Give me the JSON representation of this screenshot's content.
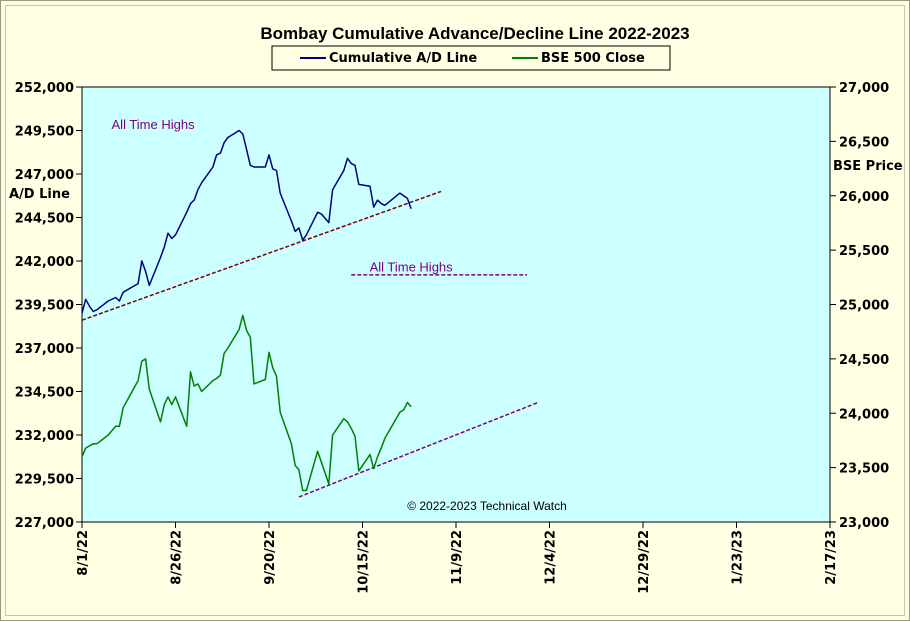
{
  "chart_data": {
    "type": "line",
    "title": "Bombay Cumulative Advance/Decline Line 2022-2023",
    "ylabel_left": [
      "A/D Line"
    ],
    "ylabel_right": "BSE Price",
    "copyright": "© 2022-2023  Technical  Watch",
    "colors": {
      "background": "#ffffe3",
      "plot": "#ccffff",
      "ad": "#000080",
      "bse": "#008000",
      "trend": "#800000",
      "ath": "#800080"
    },
    "x_axis": {
      "type": "date",
      "min": "2022-08-01",
      "max": "2023-02-17",
      "ticks": [
        {
          "date": "2022-08-01",
          "label": "8/1/22"
        },
        {
          "date": "2022-08-26",
          "label": "8/26/22"
        },
        {
          "date": "2022-09-20",
          "label": "9/20/22"
        },
        {
          "date": "2022-10-15",
          "label": "10/15/22"
        },
        {
          "date": "2022-11-09",
          "label": "11/9/22"
        },
        {
          "date": "2022-12-04",
          "label": "12/4/22"
        },
        {
          "date": "2022-12-29",
          "label": "12/29/22"
        },
        {
          "date": "2023-01-23",
          "label": "1/23/23"
        },
        {
          "date": "2023-02-17",
          "label": "2/17/23"
        }
      ]
    },
    "y_left": {
      "min": 227000,
      "max": 252000,
      "ticks": [
        {
          "v": 227000,
          "label": "227,000"
        },
        {
          "v": 229500,
          "label": "229,500"
        },
        {
          "v": 232000,
          "label": "232,000"
        },
        {
          "v": 234500,
          "label": "234,500"
        },
        {
          "v": 237000,
          "label": "237,000"
        },
        {
          "v": 239500,
          "label": "239,500"
        },
        {
          "v": 242000,
          "label": "242,000"
        },
        {
          "v": 244500,
          "label": "244,500"
        },
        {
          "v": 247000,
          "label": "247,000"
        },
        {
          "v": 249500,
          "label": "249,500"
        },
        {
          "v": 252000,
          "label": "252,000"
        }
      ]
    },
    "y_right": {
      "min": 23000,
      "max": 27000,
      "ticks": [
        {
          "v": 23000,
          "label": "23,000"
        },
        {
          "v": 23500,
          "label": "23,500"
        },
        {
          "v": 24000,
          "label": "24,000"
        },
        {
          "v": 24500,
          "label": "24,500"
        },
        {
          "v": 25000,
          "label": "25,000"
        },
        {
          "v": 25500,
          "label": "25,500"
        },
        {
          "v": 26000,
          "label": "26,000"
        },
        {
          "v": 26500,
          "label": "26,500"
        },
        {
          "v": 27000,
          "label": "27,000"
        }
      ]
    },
    "series": [
      {
        "name": "Cumulative A/D Line",
        "axis": "left",
        "color": "#000080",
        "points": [
          [
            "2022-08-01",
            239000
          ],
          [
            "2022-08-02",
            239800
          ],
          [
            "2022-08-03",
            239400
          ],
          [
            "2022-08-04",
            239100
          ],
          [
            "2022-08-05",
            239200
          ],
          [
            "2022-08-08",
            239700
          ],
          [
            "2022-08-10",
            239900
          ],
          [
            "2022-08-11",
            239700
          ],
          [
            "2022-08-12",
            240200
          ],
          [
            "2022-08-16",
            240700
          ],
          [
            "2022-08-17",
            242000
          ],
          [
            "2022-08-18",
            241400
          ],
          [
            "2022-08-19",
            240600
          ],
          [
            "2022-08-22",
            242200
          ],
          [
            "2022-08-23",
            242800
          ],
          [
            "2022-08-24",
            243600
          ],
          [
            "2022-08-25",
            243300
          ],
          [
            "2022-08-26",
            243500
          ],
          [
            "2022-08-29",
            244800
          ],
          [
            "2022-08-30",
            245300
          ],
          [
            "2022-08-31",
            245500
          ],
          [
            "2022-09-01",
            246100
          ],
          [
            "2022-09-02",
            246500
          ],
          [
            "2022-09-05",
            247400
          ],
          [
            "2022-09-06",
            248100
          ],
          [
            "2022-09-07",
            248200
          ],
          [
            "2022-09-08",
            248800
          ],
          [
            "2022-09-09",
            249100
          ],
          [
            "2022-09-12",
            249500
          ],
          [
            "2022-09-13",
            249300
          ],
          [
            "2022-09-14",
            248400
          ],
          [
            "2022-09-15",
            247500
          ],
          [
            "2022-09-16",
            247400
          ],
          [
            "2022-09-19",
            247400
          ],
          [
            "2022-09-20",
            248100
          ],
          [
            "2022-09-21",
            247300
          ],
          [
            "2022-09-22",
            247200
          ],
          [
            "2022-09-23",
            245900
          ],
          [
            "2022-09-26",
            244300
          ],
          [
            "2022-09-27",
            243700
          ],
          [
            "2022-09-28",
            243900
          ],
          [
            "2022-09-29",
            243200
          ],
          [
            "2022-09-30",
            243500
          ],
          [
            "2022-10-03",
            244800
          ],
          [
            "2022-10-04",
            244700
          ],
          [
            "2022-10-06",
            244200
          ],
          [
            "2022-10-07",
            246100
          ],
          [
            "2022-10-10",
            247200
          ],
          [
            "2022-10-11",
            247900
          ],
          [
            "2022-10-12",
            247600
          ],
          [
            "2022-10-13",
            247500
          ],
          [
            "2022-10-14",
            246400
          ],
          [
            "2022-10-17",
            246300
          ],
          [
            "2022-10-18",
            245100
          ],
          [
            "2022-10-19",
            245500
          ],
          [
            "2022-10-20",
            245300
          ],
          [
            "2022-10-21",
            245200
          ],
          [
            "2022-10-25",
            245900
          ],
          [
            "2022-10-27",
            245600
          ],
          [
            "2022-10-28",
            245000
          ]
        ]
      },
      {
        "name": "BSE 500 Close",
        "axis": "right",
        "color": "#008000",
        "points": [
          [
            "2022-08-01",
            23600
          ],
          [
            "2022-08-02",
            23680
          ],
          [
            "2022-08-03",
            23700
          ],
          [
            "2022-08-04",
            23720
          ],
          [
            "2022-08-05",
            23720
          ],
          [
            "2022-08-08",
            23800
          ],
          [
            "2022-08-10",
            23880
          ],
          [
            "2022-08-11",
            23880
          ],
          [
            "2022-08-12",
            24050
          ],
          [
            "2022-08-16",
            24300
          ],
          [
            "2022-08-17",
            24480
          ],
          [
            "2022-08-18",
            24500
          ],
          [
            "2022-08-19",
            24220
          ],
          [
            "2022-08-22",
            23920
          ],
          [
            "2022-08-23",
            24080
          ],
          [
            "2022-08-24",
            24150
          ],
          [
            "2022-08-25",
            24080
          ],
          [
            "2022-08-26",
            24150
          ],
          [
            "2022-08-29",
            23880
          ],
          [
            "2022-08-30",
            24380
          ],
          [
            "2022-08-31",
            24250
          ],
          [
            "2022-09-01",
            24270
          ],
          [
            "2022-09-02",
            24200
          ],
          [
            "2022-09-05",
            24300
          ],
          [
            "2022-09-06",
            24320
          ],
          [
            "2022-09-07",
            24350
          ],
          [
            "2022-09-08",
            24550
          ],
          [
            "2022-09-09",
            24600
          ],
          [
            "2022-09-12",
            24770
          ],
          [
            "2022-09-13",
            24900
          ],
          [
            "2022-09-14",
            24760
          ],
          [
            "2022-09-15",
            24700
          ],
          [
            "2022-09-16",
            24270
          ],
          [
            "2022-09-19",
            24310
          ],
          [
            "2022-09-20",
            24560
          ],
          [
            "2022-09-21",
            24420
          ],
          [
            "2022-09-22",
            24340
          ],
          [
            "2022-09-23",
            24010
          ],
          [
            "2022-09-26",
            23720
          ],
          [
            "2022-09-27",
            23520
          ],
          [
            "2022-09-28",
            23480
          ],
          [
            "2022-09-29",
            23290
          ],
          [
            "2022-09-30",
            23290
          ],
          [
            "2022-10-03",
            23650
          ],
          [
            "2022-10-04",
            23550
          ],
          [
            "2022-10-06",
            23350
          ],
          [
            "2022-10-07",
            23800
          ],
          [
            "2022-10-10",
            23950
          ],
          [
            "2022-10-11",
            23920
          ],
          [
            "2022-10-12",
            23860
          ],
          [
            "2022-10-13",
            23790
          ],
          [
            "2022-10-14",
            23470
          ],
          [
            "2022-10-17",
            23620
          ],
          [
            "2022-10-18",
            23490
          ],
          [
            "2022-10-19",
            23600
          ],
          [
            "2022-10-20",
            23680
          ],
          [
            "2022-10-21",
            23770
          ],
          [
            "2022-10-25",
            24010
          ],
          [
            "2022-10-26",
            24030
          ],
          [
            "2022-10-27",
            24100
          ],
          [
            "2022-10-28",
            24060
          ]
        ]
      }
    ],
    "trendlines": [
      {
        "axis": "left",
        "color": "#800000",
        "style": "dashed",
        "start": [
          "2022-08-01",
          238600
        ],
        "end": [
          "2022-11-05",
          246000
        ]
      },
      {
        "axis": "right",
        "color": "#800080",
        "style": "dashed",
        "start": [
          "2022-09-28",
          23230
        ],
        "end": [
          "2022-12-01",
          24100
        ]
      }
    ],
    "all_time_high_line": {
      "axis": "left",
      "color": "#800080",
      "style": "dashed",
      "value": 241200,
      "start": "2022-10-12",
      "end": "2022-11-28",
      "label": "All Time Highs"
    },
    "annotations": [
      {
        "text": "All Time Highs",
        "anchor": [
          "2022-08-20",
          249600
        ]
      },
      {
        "text": "All Time Highs",
        "anchor": [
          "2022-10-28",
          241400
        ]
      }
    ]
  }
}
